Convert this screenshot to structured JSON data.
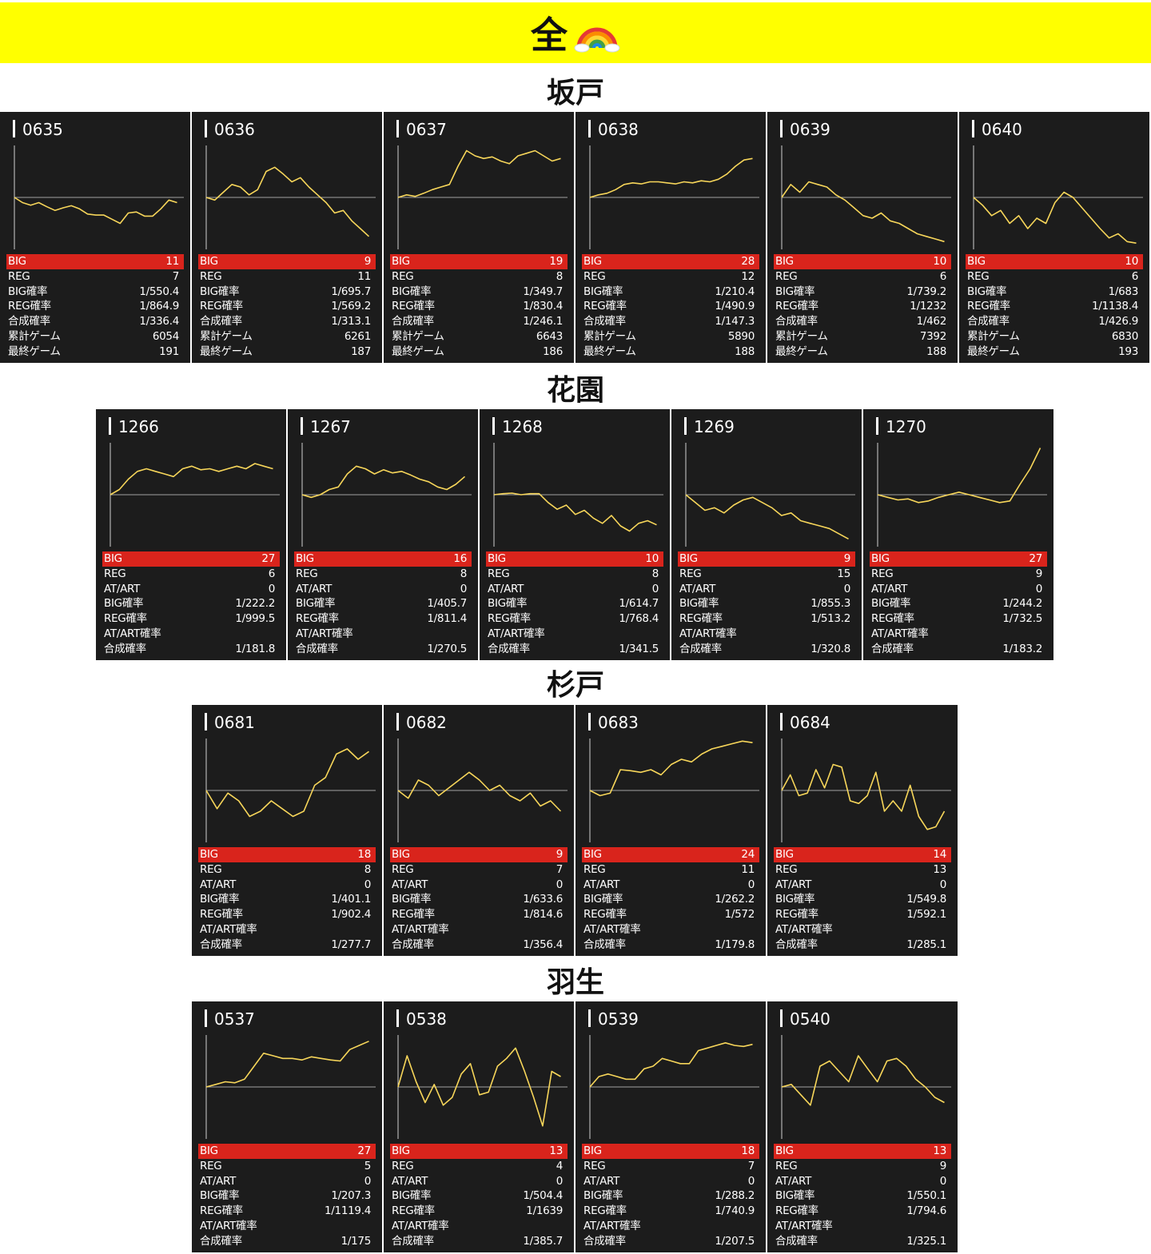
{
  "header": {
    "title": "全",
    "icon": "rainbow-icon"
  },
  "colors": {
    "banner": "#ffff00",
    "card_bg": "#1c1c1c",
    "big_row": "#d9241c",
    "line": "#f7d65a",
    "axis": "#cfcfcf"
  },
  "sections": [
    {
      "name": "坂戸",
      "labels": [
        "BIG",
        "REG",
        "BIG確率",
        "REG確率",
        "合成確率",
        "累計ゲーム",
        "最終ゲーム"
      ],
      "machines": [
        {
          "id": "0635",
          "values": [
            "11",
            "7",
            "1/550.4",
            "1/864.9",
            "1/336.4",
            "6054",
            "191"
          ],
          "chart_data": {
            "type": "line",
            "ylim": [
              -100,
              100
            ],
            "baseline": 0,
            "points": [
              0,
              -10,
              -15,
              -10,
              -18,
              -25,
              -20,
              -16,
              -22,
              -32,
              -34,
              -34,
              -42,
              -50,
              -30,
              -28,
              -36,
              -36,
              -22,
              -5,
              -10
            ]
          }
        },
        {
          "id": "0636",
          "values": [
            "9",
            "11",
            "1/695.7",
            "1/569.2",
            "1/313.1",
            "6261",
            "187"
          ],
          "chart_data": {
            "type": "line",
            "ylim": [
              -100,
              100
            ],
            "baseline": 0,
            "points": [
              0,
              -5,
              10,
              25,
              20,
              5,
              15,
              50,
              58,
              45,
              30,
              38,
              20,
              5,
              -10,
              -30,
              -25,
              -45,
              -60,
              -75
            ]
          }
        },
        {
          "id": "0637",
          "values": [
            "19",
            "8",
            "1/349.7",
            "1/830.4",
            "1/246.1",
            "6643",
            "186"
          ],
          "chart_data": {
            "type": "line",
            "ylim": [
              -100,
              100
            ],
            "baseline": 0,
            "points": [
              0,
              5,
              2,
              8,
              15,
              20,
              25,
              60,
              90,
              80,
              75,
              78,
              70,
              65,
              80,
              85,
              90,
              80,
              70,
              75
            ]
          }
        },
        {
          "id": "0638",
          "values": [
            "28",
            "12",
            "1/210.4",
            "1/490.9",
            "1/147.3",
            "5890",
            "188"
          ],
          "chart_data": {
            "type": "line",
            "ylim": [
              -100,
              100
            ],
            "baseline": 0,
            "points": [
              0,
              5,
              8,
              15,
              25,
              28,
              26,
              30,
              30,
              28,
              26,
              30,
              28,
              32,
              30,
              35,
              45,
              60,
              72,
              75
            ]
          }
        },
        {
          "id": "0639",
          "values": [
            "10",
            "6",
            "1/739.2",
            "1/1232",
            "1/462",
            "7392",
            "188"
          ],
          "chart_data": {
            "type": "line",
            "ylim": [
              -100,
              100
            ],
            "baseline": 0,
            "points": [
              0,
              25,
              10,
              30,
              25,
              20,
              5,
              -5,
              -20,
              -35,
              -40,
              -30,
              -45,
              -50,
              -60,
              -70,
              -75,
              -80,
              -85
            ]
          }
        },
        {
          "id": "0640",
          "values": [
            "10",
            "6",
            "1/683",
            "1/1138.4",
            "1/426.9",
            "6830",
            "193"
          ],
          "chart_data": {
            "type": "line",
            "ylim": [
              -100,
              100
            ],
            "baseline": 0,
            "points": [
              0,
              -15,
              -35,
              -25,
              -50,
              -35,
              -60,
              -40,
              -50,
              -10,
              10,
              0,
              -20,
              -40,
              -60,
              -78,
              -70,
              -85,
              -88
            ]
          }
        }
      ]
    },
    {
      "name": "花園",
      "labels": [
        "BIG",
        "REG",
        "AT/ART",
        "BIG確率",
        "REG確率",
        "AT/ART確率",
        "合成確率"
      ],
      "machines": [
        {
          "id": "1266",
          "values": [
            "27",
            "6",
            "0",
            "1/222.2",
            "1/999.5",
            "",
            "1/181.8"
          ],
          "chart_data": {
            "type": "line",
            "ylim": [
              -100,
              100
            ],
            "baseline": 0,
            "points": [
              0,
              10,
              30,
              45,
              50,
              45,
              40,
              35,
              50,
              55,
              48,
              50,
              45,
              50,
              55,
              50,
              60,
              55,
              50
            ]
          }
        },
        {
          "id": "1267",
          "values": [
            "16",
            "8",
            "0",
            "1/405.7",
            "1/811.4",
            "",
            "1/270.5"
          ],
          "chart_data": {
            "type": "line",
            "ylim": [
              -100,
              100
            ],
            "baseline": 0,
            "points": [
              0,
              -5,
              0,
              10,
              15,
              40,
              55,
              50,
              40,
              48,
              42,
              45,
              38,
              30,
              25,
              15,
              10,
              20,
              35
            ]
          }
        },
        {
          "id": "1268",
          "values": [
            "10",
            "8",
            "0",
            "1/614.7",
            "1/768.4",
            "",
            "1/341.5"
          ],
          "chart_data": {
            "type": "line",
            "ylim": [
              -100,
              100
            ],
            "baseline": 0,
            "points": [
              0,
              2,
              3,
              0,
              2,
              2,
              -15,
              -28,
              -20,
              -38,
              -30,
              -45,
              -55,
              -40,
              -60,
              -70,
              -55,
              -50,
              -58
            ]
          }
        },
        {
          "id": "1269",
          "values": [
            "9",
            "15",
            "0",
            "1/855.3",
            "1/513.2",
            "",
            "1/320.8"
          ],
          "chart_data": {
            "type": "line",
            "ylim": [
              -100,
              100
            ],
            "baseline": 0,
            "points": [
              0,
              -15,
              -30,
              -25,
              -35,
              -20,
              -10,
              -5,
              -15,
              -25,
              -40,
              -35,
              -50,
              -55,
              -60,
              -65,
              -75,
              -85
            ]
          }
        },
        {
          "id": "1270",
          "values": [
            "27",
            "9",
            "0",
            "1/244.2",
            "1/732.5",
            "",
            "1/183.2"
          ],
          "chart_data": {
            "type": "line",
            "ylim": [
              -100,
              100
            ],
            "baseline": 0,
            "points": [
              0,
              -5,
              -10,
              -8,
              -15,
              -12,
              -5,
              0,
              5,
              0,
              -5,
              -10,
              -15,
              -12,
              20,
              50,
              90
            ]
          }
        }
      ]
    },
    {
      "name": "杉戸",
      "labels": [
        "BIG",
        "REG",
        "AT/ART",
        "BIG確率",
        "REG確率",
        "AT/ART確率",
        "合成確率"
      ],
      "machines": [
        {
          "id": "0681",
          "values": [
            "18",
            "8",
            "0",
            "1/401.1",
            "1/902.4",
            "",
            "1/277.7"
          ],
          "chart_data": {
            "type": "line",
            "ylim": [
              -100,
              100
            ],
            "baseline": 0,
            "points": [
              0,
              -35,
              -5,
              -20,
              -50,
              -40,
              -20,
              -35,
              -50,
              -40,
              10,
              25,
              70,
              80,
              60,
              75
            ]
          }
        },
        {
          "id": "0682",
          "values": [
            "9",
            "7",
            "0",
            "1/633.6",
            "1/814.6",
            "",
            "1/356.4"
          ],
          "chart_data": {
            "type": "line",
            "ylim": [
              -100,
              100
            ],
            "baseline": 0,
            "points": [
              0,
              -15,
              20,
              10,
              -10,
              5,
              20,
              35,
              20,
              0,
              10,
              -10,
              -20,
              -5,
              -30,
              -20,
              -40
            ]
          }
        },
        {
          "id": "0683",
          "values": [
            "24",
            "11",
            "0",
            "1/262.2",
            "1/572",
            "",
            "1/179.8"
          ],
          "chart_data": {
            "type": "line",
            "ylim": [
              -100,
              100
            ],
            "baseline": 0,
            "points": [
              0,
              -10,
              -5,
              40,
              38,
              35,
              40,
              30,
              50,
              60,
              55,
              70,
              80,
              85,
              90,
              95,
              92
            ]
          }
        },
        {
          "id": "0684",
          "values": [
            "14",
            "13",
            "0",
            "1/549.8",
            "1/592.1",
            "",
            "1/285.1"
          ],
          "chart_data": {
            "type": "line",
            "ylim": [
              -100,
              100
            ],
            "baseline": 0,
            "points": [
              0,
              30,
              -10,
              -5,
              40,
              5,
              50,
              45,
              -20,
              -25,
              -10,
              35,
              -40,
              -20,
              -40,
              10,
              -50,
              -75,
              -70,
              -40
            ]
          }
        }
      ]
    },
    {
      "name": "羽生",
      "labels": [
        "BIG",
        "REG",
        "AT/ART",
        "BIG確率",
        "REG確率",
        "AT/ART確率",
        "合成確率"
      ],
      "machines": [
        {
          "id": "0537",
          "values": [
            "27",
            "5",
            "0",
            "1/207.3",
            "1/1119.4",
            "",
            "1/175"
          ],
          "chart_data": {
            "type": "line",
            "ylim": [
              -100,
              100
            ],
            "baseline": 0,
            "points": [
              0,
              5,
              10,
              8,
              15,
              40,
              65,
              60,
              55,
              55,
              52,
              58,
              55,
              52,
              50,
              72,
              80,
              88
            ]
          }
        },
        {
          "id": "0538",
          "values": [
            "13",
            "4",
            "0",
            "1/504.4",
            "1/1639",
            "",
            "1/385.7"
          ],
          "chart_data": {
            "type": "line",
            "ylim": [
              -100,
              100
            ],
            "baseline": 0,
            "points": [
              0,
              60,
              10,
              -30,
              5,
              -35,
              -20,
              25,
              45,
              -15,
              -10,
              40,
              55,
              75,
              30,
              -20,
              -75,
              30,
              20
            ]
          }
        },
        {
          "id": "0539",
          "values": [
            "18",
            "7",
            "0",
            "1/288.2",
            "1/740.9",
            "",
            "1/207.5"
          ],
          "chart_data": {
            "type": "line",
            "ylim": [
              -100,
              100
            ],
            "baseline": 0,
            "points": [
              0,
              20,
              25,
              20,
              15,
              15,
              35,
              40,
              55,
              50,
              45,
              45,
              70,
              75,
              80,
              85,
              80,
              78,
              82
            ]
          }
        },
        {
          "id": "0540",
          "values": [
            "13",
            "9",
            "0",
            "1/550.1",
            "1/794.6",
            "",
            "1/325.1"
          ],
          "chart_data": {
            "type": "line",
            "ylim": [
              -100,
              100
            ],
            "baseline": 0,
            "points": [
              0,
              5,
              -15,
              -35,
              40,
              50,
              30,
              10,
              60,
              35,
              10,
              50,
              55,
              40,
              15,
              0,
              -20,
              -30
            ]
          }
        }
      ]
    }
  ]
}
